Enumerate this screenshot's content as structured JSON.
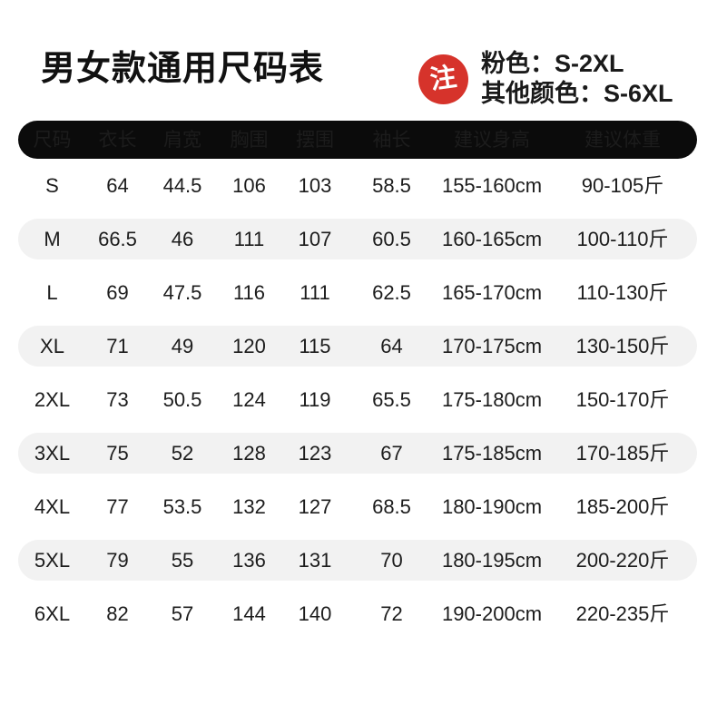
{
  "header": {
    "title": "男女款通用尺码表",
    "note_badge": "注",
    "note_line_pink": "粉色：S-2XL",
    "note_line_other": "其他颜色：S-6XL"
  },
  "table": {
    "columns": [
      "尺码",
      "衣长",
      "肩宽",
      "胸围",
      "摆围",
      "袖长",
      "建议身高",
      "建议体重"
    ],
    "rows": [
      [
        "S",
        "64",
        "44.5",
        "106",
        "103",
        "58.5",
        "155-160cm",
        "90-105斤"
      ],
      [
        "M",
        "66.5",
        "46",
        "111",
        "107",
        "60.5",
        "160-165cm",
        "100-110斤"
      ],
      [
        "L",
        "69",
        "47.5",
        "116",
        "111",
        "62.5",
        "165-170cm",
        "110-130斤"
      ],
      [
        "XL",
        "71",
        "49",
        "120",
        "115",
        "64",
        "170-175cm",
        "130-150斤"
      ],
      [
        "2XL",
        "73",
        "50.5",
        "124",
        "119",
        "65.5",
        "175-180cm",
        "150-170斤"
      ],
      [
        "3XL",
        "75",
        "52",
        "128",
        "123",
        "67",
        "175-185cm",
        "170-185斤"
      ],
      [
        "4XL",
        "77",
        "53.5",
        "132",
        "127",
        "68.5",
        "180-190cm",
        "185-200斤"
      ],
      [
        "5XL",
        "79",
        "55",
        "136",
        "131",
        "70",
        "180-195cm",
        "200-220斤"
      ],
      [
        "6XL",
        "82",
        "57",
        "144",
        "140",
        "72",
        "190-200cm",
        "220-235斤"
      ]
    ],
    "striped_row_indices": [
      1,
      3,
      5,
      7
    ]
  },
  "colors": {
    "header_bg": "#0b0b0b",
    "stripe_bg": "#f2f2f2",
    "badge_red": "#d6332b",
    "text": "#1c1c1c"
  }
}
